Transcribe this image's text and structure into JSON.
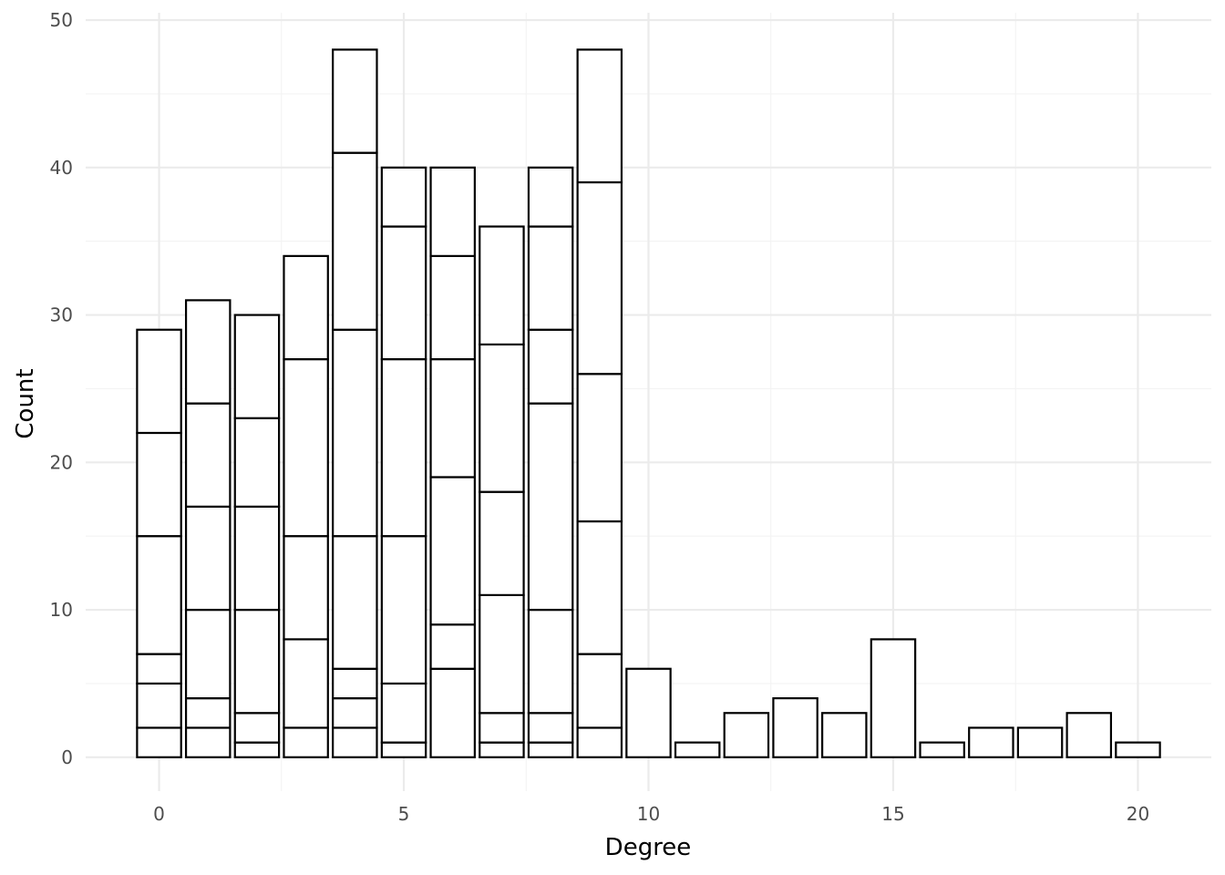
{
  "chart_data": {
    "type": "bar",
    "stacked": true,
    "title": "",
    "xlabel": "Degree",
    "ylabel": "Count",
    "xlim": [
      -1.5,
      21.5
    ],
    "ylim": [
      -2.3,
      50.5
    ],
    "x_ticks": [
      0,
      5,
      10,
      15,
      20
    ],
    "y_ticks": [
      0,
      10,
      20,
      30,
      40,
      50
    ],
    "grid": true,
    "legend": "none",
    "fill_color": "#ffffff",
    "stroke_color": "#000000",
    "x": [
      0,
      1,
      2,
      3,
      4,
      5,
      6,
      7,
      8,
      9,
      10,
      11,
      12,
      13,
      14,
      15,
      16,
      17,
      18,
      19,
      20
    ],
    "stack_boundaries": [
      [
        2,
        5,
        7,
        15,
        22,
        29
      ],
      [
        2,
        4,
        10,
        17,
        24,
        31
      ],
      [
        1,
        3,
        10,
        17,
        23,
        30
      ],
      [
        2,
        8,
        15,
        27,
        34
      ],
      [
        2,
        4,
        6,
        15,
        29,
        41,
        48
      ],
      [
        1,
        5,
        15,
        27,
        36,
        40
      ],
      [
        6,
        9,
        19,
        27,
        34,
        40
      ],
      [
        1,
        3,
        11,
        18,
        28,
        36
      ],
      [
        1,
        3,
        10,
        24,
        29,
        36,
        40
      ],
      [
        2,
        7,
        16,
        26,
        39,
        48
      ],
      [
        6
      ],
      [
        1
      ],
      [
        3
      ],
      [
        4
      ],
      [
        3
      ],
      [
        8
      ],
      [
        1
      ],
      [
        2
      ],
      [
        2
      ],
      [
        3
      ],
      [
        1
      ]
    ],
    "totals": [
      29,
      31,
      30,
      34,
      48,
      40,
      40,
      36,
      40,
      48,
      6,
      1,
      3,
      4,
      3,
      8,
      1,
      2,
      2,
      3,
      1
    ]
  }
}
